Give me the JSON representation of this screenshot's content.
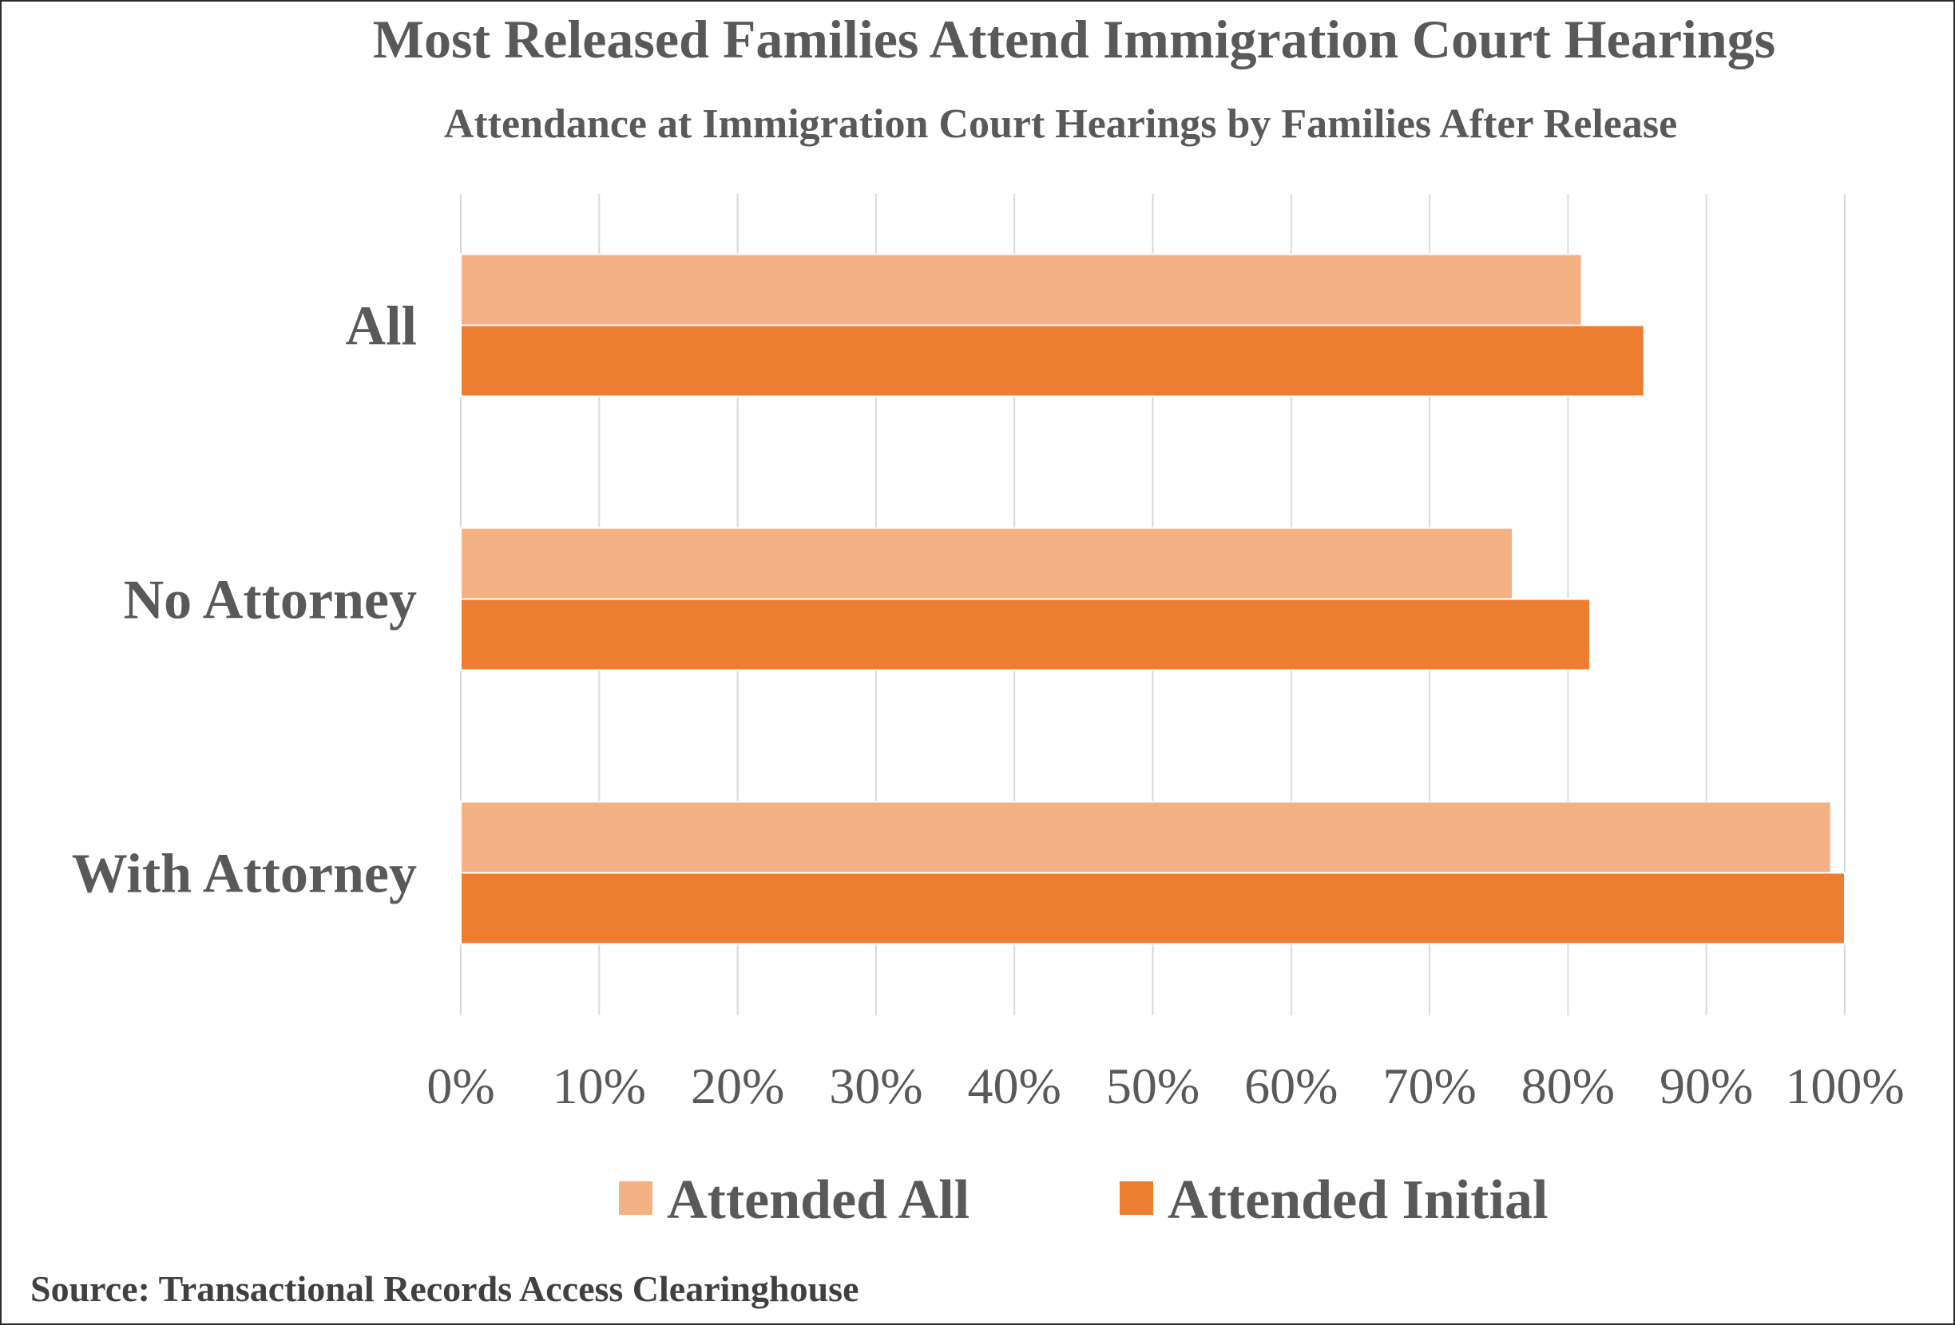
{
  "chart_data": {
    "type": "bar",
    "orientation": "horizontal",
    "title": "Most Released Families Attend Immigration Court Hearings",
    "subtitle": "Attendance at Immigration Court Hearings by Families After Release",
    "categories": [
      "All",
      "No Attorney",
      "With Attorney"
    ],
    "series": [
      {
        "name": "Attended All",
        "color": "#F4B183",
        "values": [
          81,
          76,
          99
        ]
      },
      {
        "name": "Attended Initial",
        "color": "#ED7D31",
        "values": [
          85.5,
          81.6,
          100
        ]
      }
    ],
    "xlim": [
      0,
      100
    ],
    "x_ticks": [
      0,
      10,
      20,
      30,
      40,
      50,
      60,
      70,
      80,
      90,
      100
    ],
    "x_tick_labels": [
      "0%",
      "10%",
      "20%",
      "30%",
      "40%",
      "50%",
      "60%",
      "70%",
      "80%",
      "90%",
      "100%"
    ],
    "grid": true,
    "legend_position": "bottom",
    "source": "Source: Transactional Records Access Clearinghouse"
  }
}
